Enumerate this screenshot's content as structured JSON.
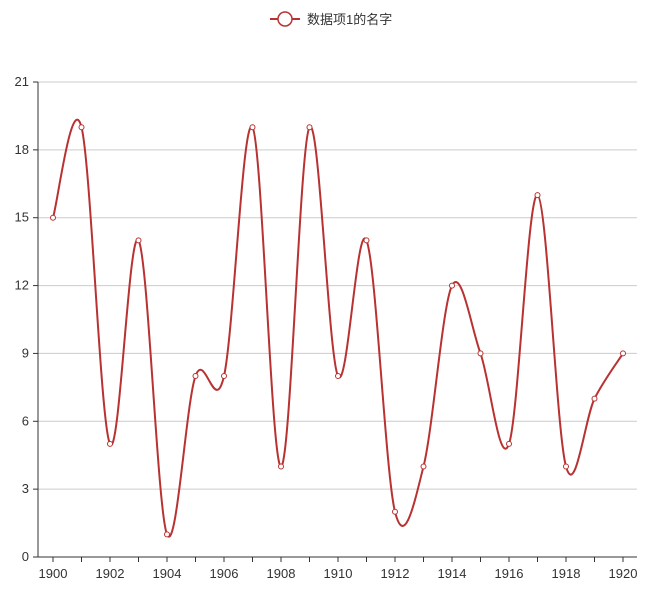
{
  "chart_data": {
    "type": "line",
    "smooth": true,
    "x": [
      "1900",
      "1901",
      "1902",
      "1903",
      "1904",
      "1905",
      "1906",
      "1907",
      "1908",
      "1909",
      "1910",
      "1911",
      "1912",
      "1913",
      "1914",
      "1915",
      "1916",
      "1917",
      "1918",
      "1919",
      "1920"
    ],
    "series": [
      {
        "name": "数据项1的名字",
        "values": [
          15,
          19,
          5,
          14,
          1,
          8,
          8,
          19,
          4,
          19,
          8,
          14,
          2,
          4,
          12,
          9,
          5,
          16,
          4,
          7,
          9
        ]
      }
    ],
    "x_tick_labels": [
      "1900",
      "1902",
      "1904",
      "1906",
      "1908",
      "1910",
      "1912",
      "1914",
      "1916",
      "1918",
      "1920"
    ],
    "y_tick_labels": [
      "0",
      "3",
      "6",
      "9",
      "12",
      "15",
      "18",
      "21"
    ],
    "ylim": [
      0,
      21
    ],
    "grid": "horizontal",
    "legend": "top-center",
    "colors": {
      "series": "#b83232",
      "grid": "#cccccc",
      "axis": "#333333",
      "marker_fill": "#ffffff"
    }
  }
}
